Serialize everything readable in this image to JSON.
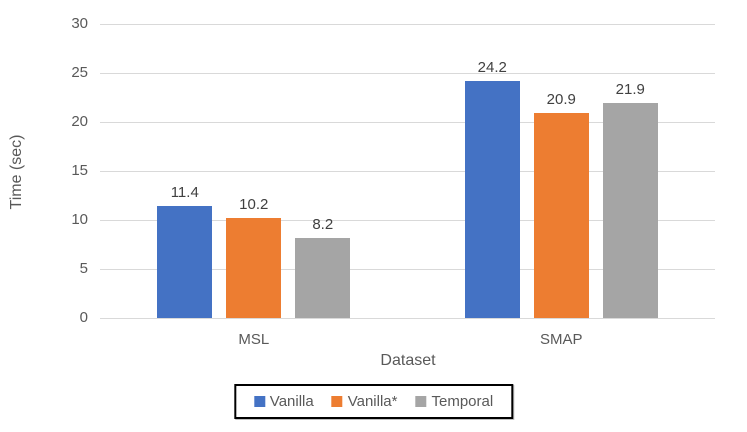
{
  "chart_data": {
    "type": "bar",
    "title": "",
    "xlabel": "Dataset",
    "ylabel": "Time (sec)",
    "categories": [
      "MSL",
      "SMAP"
    ],
    "series": [
      {
        "name": "Vanilla",
        "color": "#4472C4",
        "values": [
          11.4,
          24.2
        ]
      },
      {
        "name": "Vanilla*",
        "color": "#ED7D31",
        "values": [
          10.2,
          20.9
        ]
      },
      {
        "name": "Temporal",
        "color": "#A5A5A5",
        "values": [
          8.2,
          21.9
        ]
      }
    ],
    "ylim": [
      0,
      30
    ],
    "yticks": [
      0,
      5,
      10,
      15,
      20,
      25,
      30
    ],
    "grid": true,
    "legend_position": "bottom",
    "data_labels_decimals": 1,
    "colors": {
      "gridline": "#d9d9d9",
      "tick_text": "#595959",
      "data_label_text": "#404040",
      "legend_border": "#000000",
      "background": "#ffffff"
    }
  }
}
